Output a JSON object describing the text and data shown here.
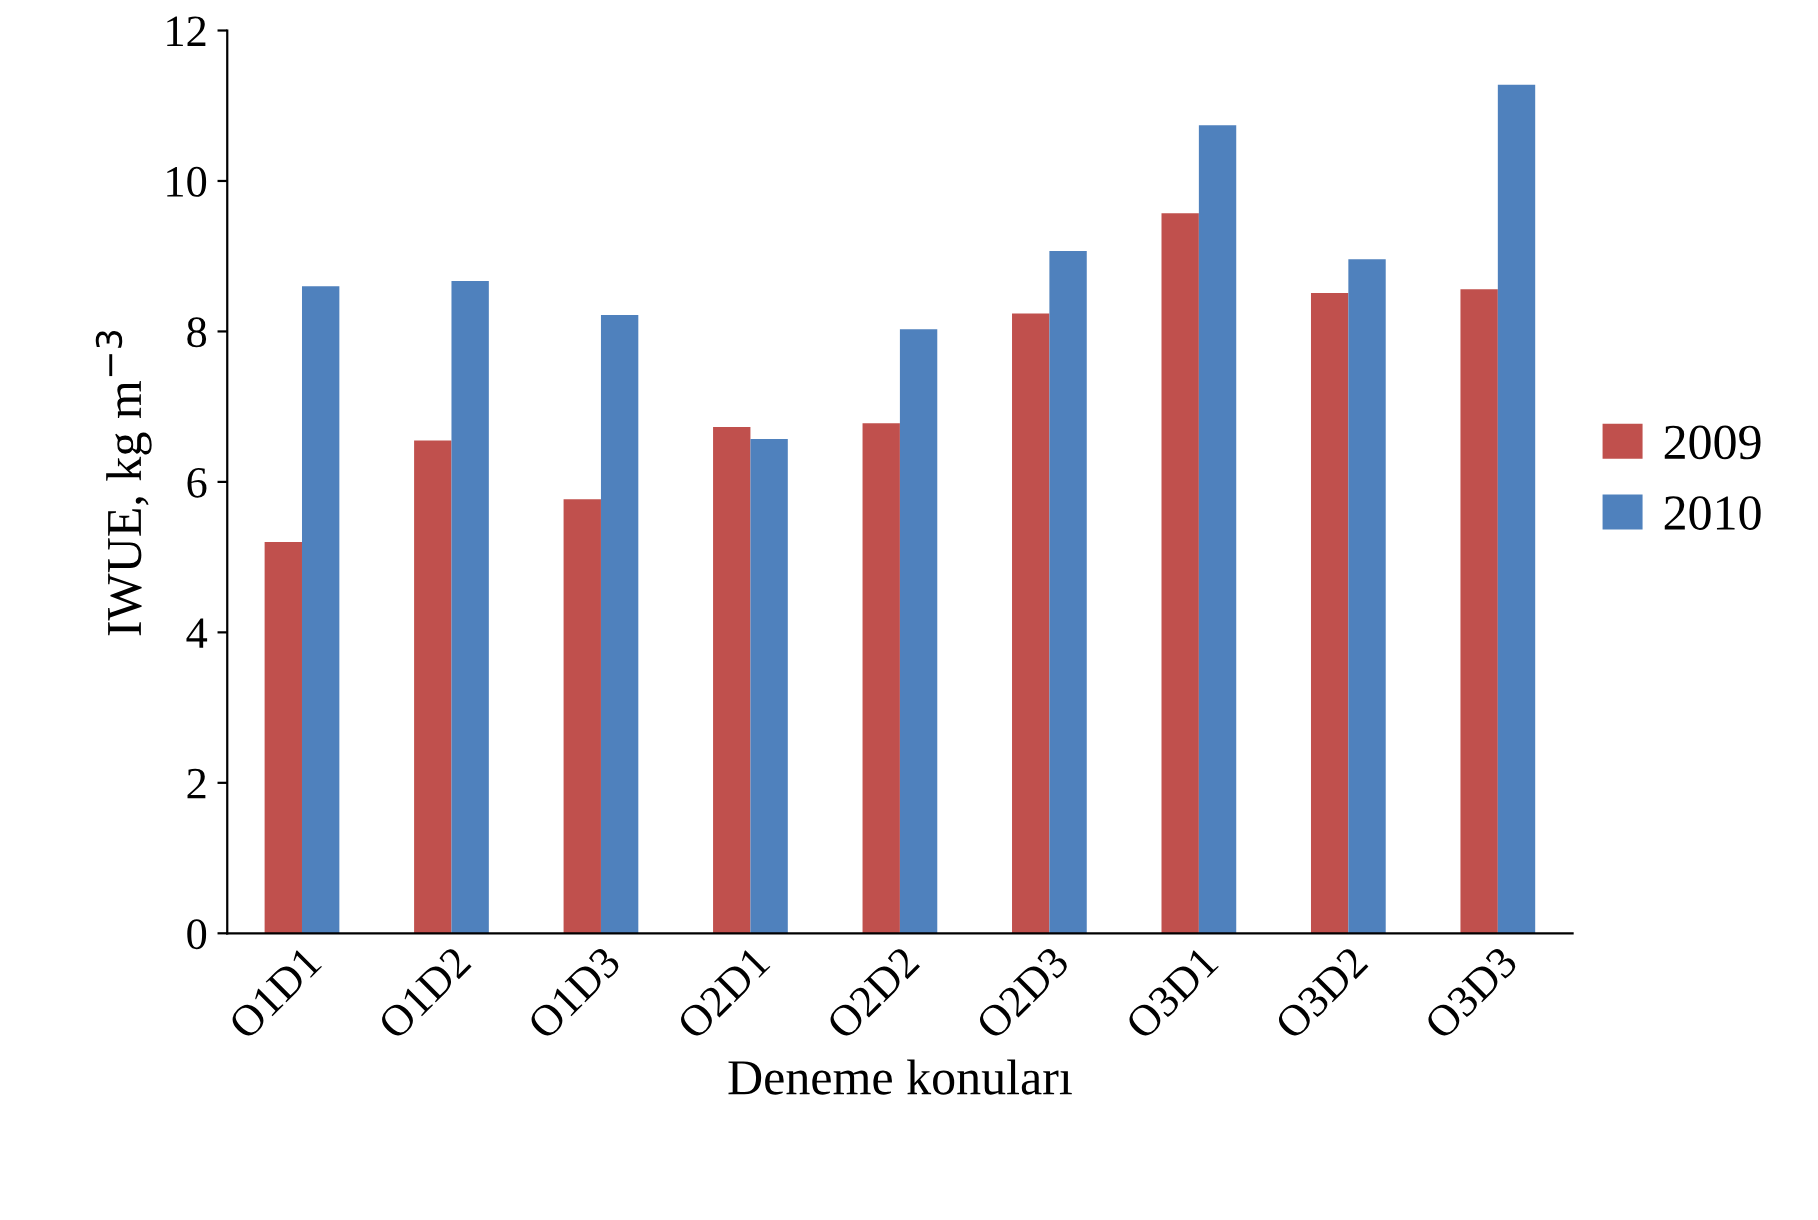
{
  "chart_data": {
    "type": "bar",
    "xlabel": "Deneme konuları",
    "ylabel": "IWUE, kg m$^{−3}$",
    "categories": [
      "O1D1",
      "O1D2",
      "O1D3",
      "O2D1",
      "O2D2",
      "O2D3",
      "O3D1",
      "O3D2",
      "O3D3"
    ],
    "series": [
      {
        "name": "2009",
        "color": "#c0504d",
        "values": [
          5.2,
          6.55,
          5.77,
          6.73,
          6.78,
          8.24,
          9.57,
          8.51,
          8.56
        ]
      },
      {
        "name": "2010",
        "color": "#4f81bd",
        "values": [
          8.6,
          8.67,
          8.22,
          6.57,
          8.03,
          9.07,
          10.74,
          8.96,
          11.28
        ]
      }
    ],
    "ylim": [
      0,
      12
    ],
    "yticks": [
      0,
      2,
      4,
      6,
      8,
      10,
      12
    ],
    "grid": false,
    "legend": "right"
  }
}
